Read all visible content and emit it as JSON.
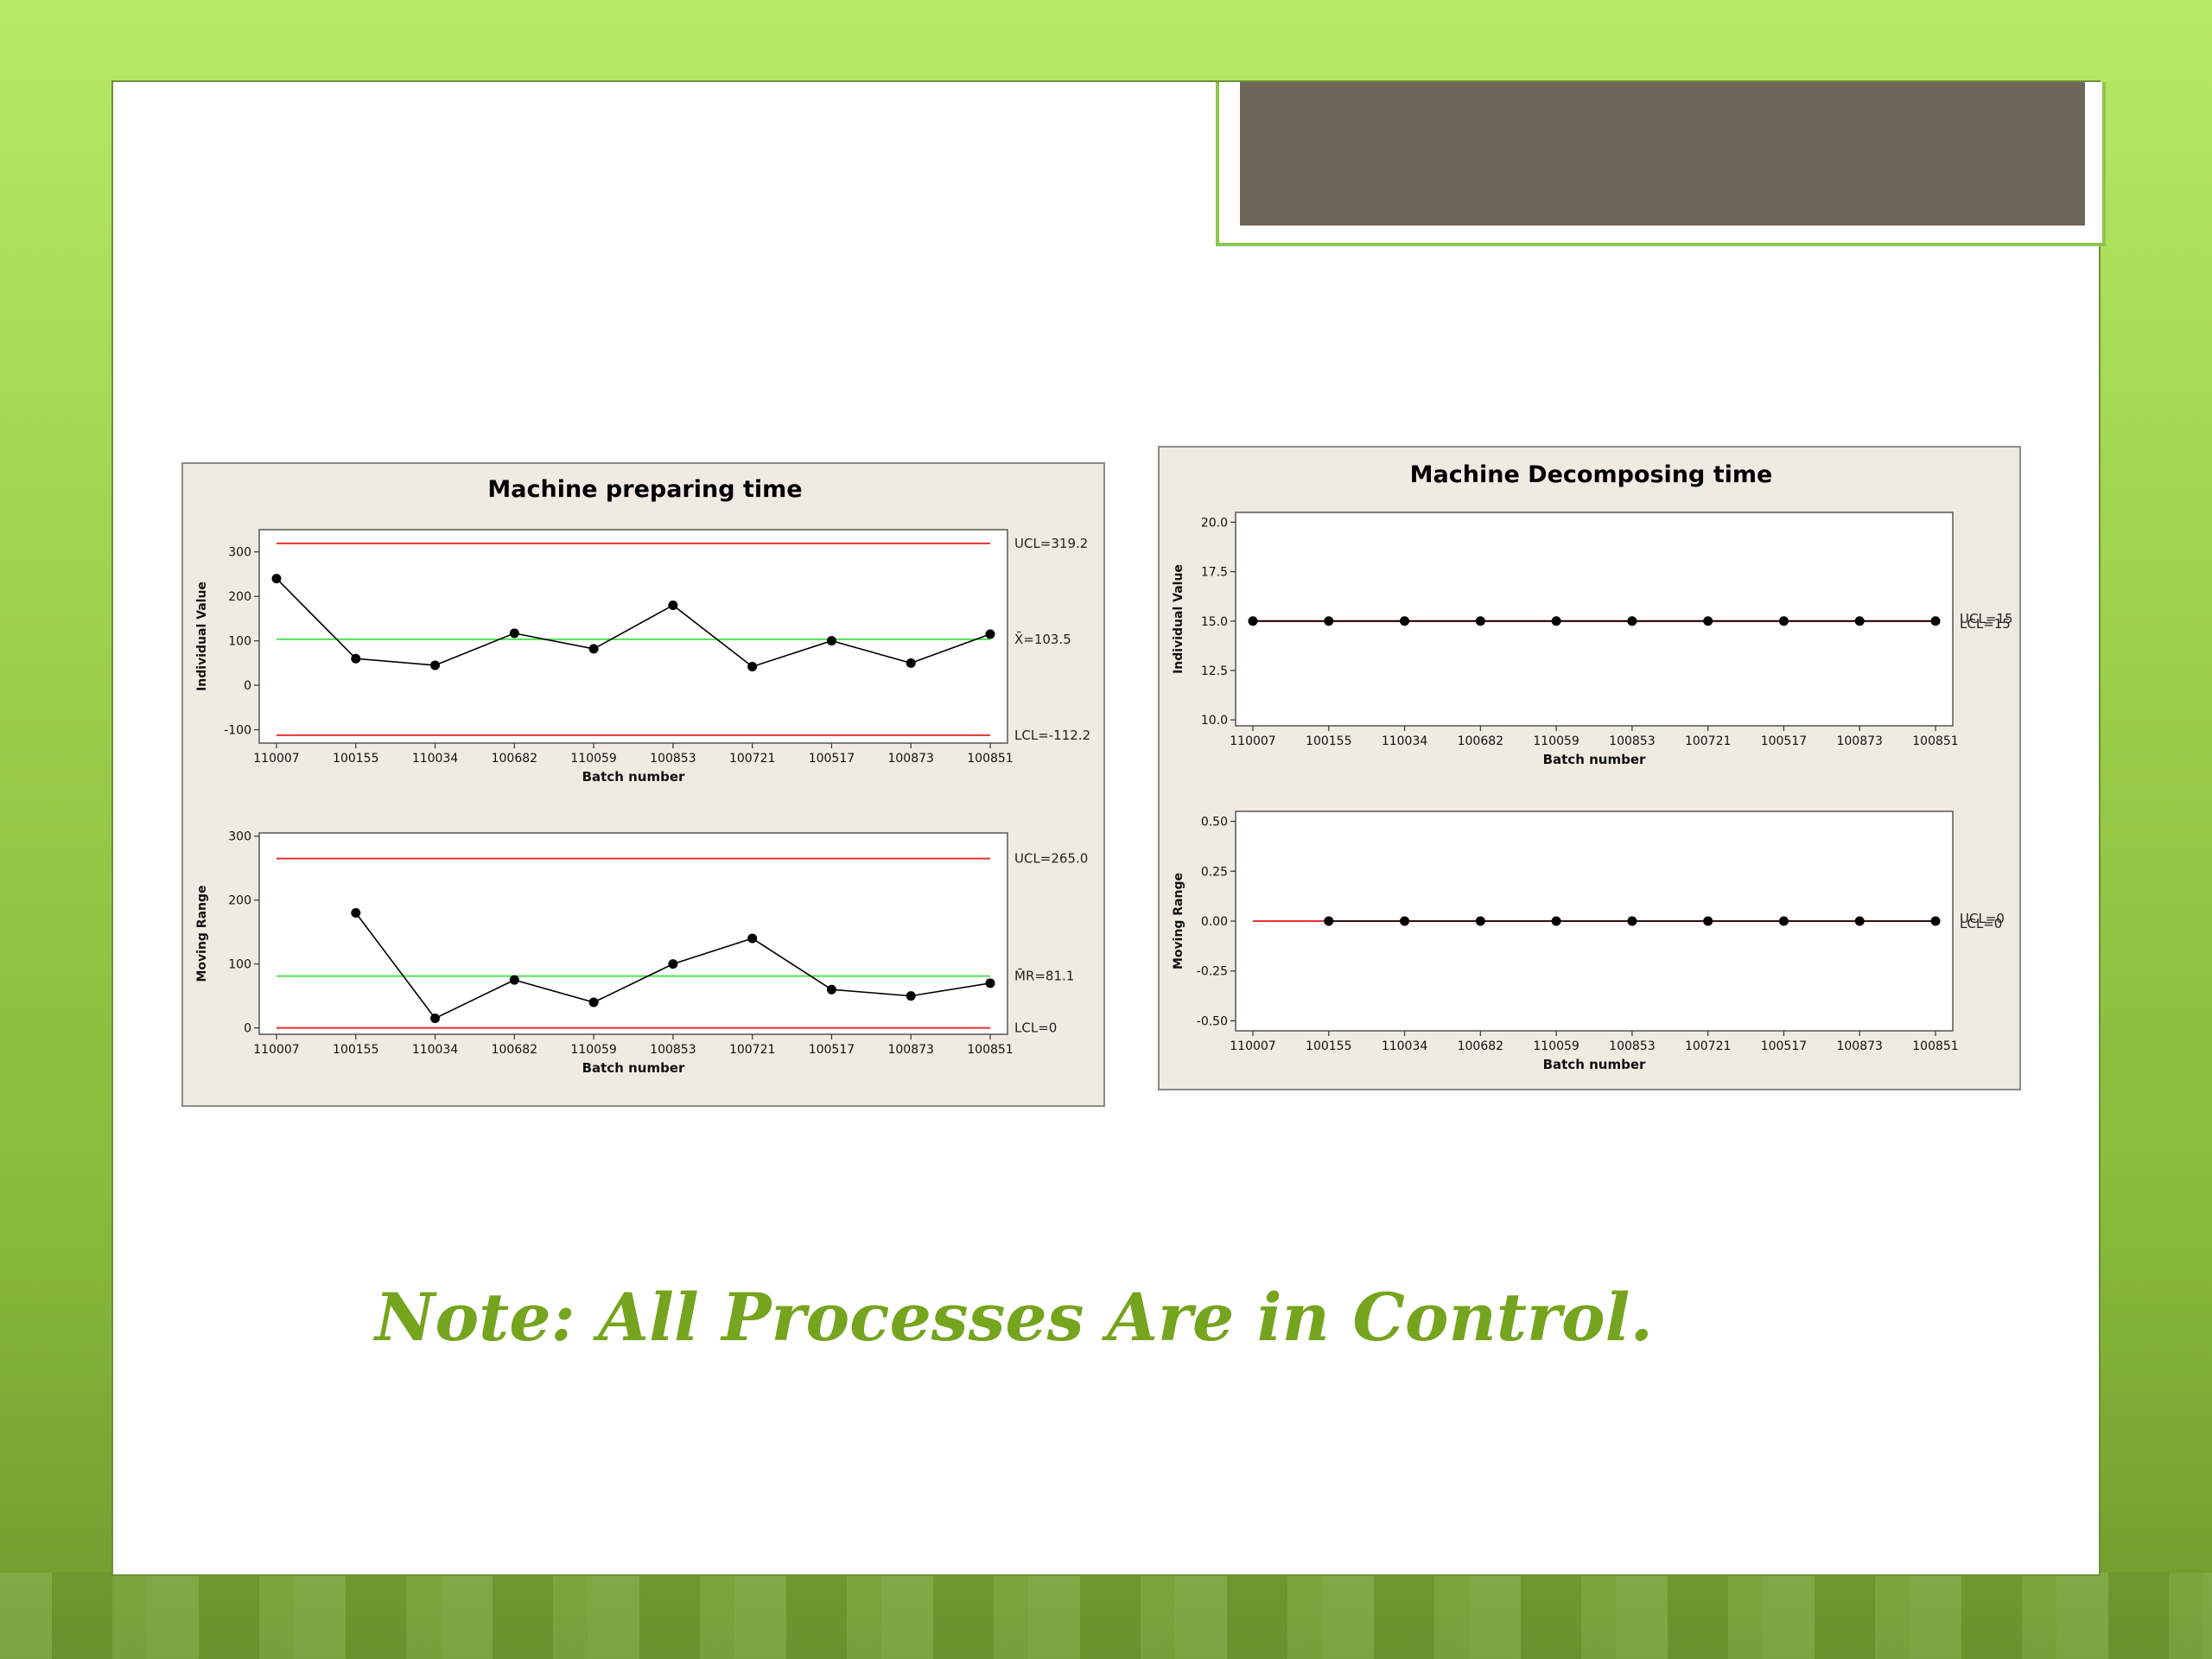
{
  "note": "Note: All Processes Are in Control.",
  "colors": {
    "limit": "#e53030",
    "center": "#55e055",
    "data": "#000000",
    "panel_bg": "#efebe2",
    "note": "#75a41e"
  },
  "chart_data": [
    {
      "type": "line",
      "title": "Machine preparing time",
      "xlabel": "Batch number",
      "categories": [
        "110007",
        "100155",
        "110034",
        "100682",
        "110059",
        "100853",
        "100721",
        "100517",
        "100873",
        "100851"
      ],
      "subcharts": [
        {
          "ylabel": "Individual Value",
          "values": [
            240,
            60,
            45,
            117,
            82,
            180,
            42,
            100,
            50,
            115
          ],
          "ylim": [
            -130,
            350
          ],
          "yticks": [
            -100,
            0,
            100,
            200,
            300
          ],
          "ytick_labels": [
            "-100",
            "0",
            "100",
            "200",
            "300"
          ],
          "limits": [
            {
              "value": 319.2,
              "kind": "ucl",
              "label": "UCL=319.2"
            },
            {
              "value": 103.5,
              "kind": "center",
              "label": "X̄=103.5"
            },
            {
              "value": -112.2,
              "kind": "lcl",
              "label": "LCL=-112.2"
            }
          ],
          "start_index": 0
        },
        {
          "ylabel": "Moving Range",
          "values": [
            null,
            180,
            15,
            75,
            40,
            100,
            140,
            60,
            50,
            70
          ],
          "ylim": [
            -10,
            305
          ],
          "yticks": [
            0,
            100,
            200,
            300
          ],
          "ytick_labels": [
            "0",
            "100",
            "200",
            "300"
          ],
          "limits": [
            {
              "value": 265.0,
              "kind": "ucl",
              "label": "UCL=265.0"
            },
            {
              "value": 81.1,
              "kind": "center",
              "label": "M̄R=81.1"
            },
            {
              "value": 0,
              "kind": "lcl",
              "label": "LCL=0"
            }
          ],
          "start_index": 1
        }
      ]
    },
    {
      "type": "line",
      "title": "Machine Decomposing time",
      "xlabel": "Batch number",
      "categories": [
        "110007",
        "100155",
        "110034",
        "100682",
        "110059",
        "100853",
        "100721",
        "100517",
        "100873",
        "100851"
      ],
      "subcharts": [
        {
          "ylabel": "Individual Value",
          "values": [
            15,
            15,
            15,
            15,
            15,
            15,
            15,
            15,
            15,
            15
          ],
          "ylim": [
            9.7,
            20.5
          ],
          "yticks": [
            10,
            12.5,
            15,
            17.5,
            20
          ],
          "ytick_labels": [
            "10.0",
            "12.5",
            "15.0",
            "17.5",
            "20.0"
          ],
          "limits": [
            {
              "value": 15,
              "kind": "ucl",
              "label": "UCL=15"
            },
            {
              "value": 15,
              "kind": "lcl",
              "label": "LCL=15"
            }
          ],
          "start_index": 0
        },
        {
          "ylabel": "Moving Range",
          "values": [
            null,
            0,
            0,
            0,
            0,
            0,
            0,
            0,
            0,
            0
          ],
          "ylim": [
            -0.55,
            0.55
          ],
          "yticks": [
            -0.5,
            -0.25,
            0,
            0.25,
            0.5
          ],
          "ytick_labels": [
            "-0.50",
            "-0.25",
            "0.00",
            "0.25",
            "0.50"
          ],
          "limits": [
            {
              "value": 0,
              "kind": "ucl",
              "label": "UCL=0"
            },
            {
              "value": 0,
              "kind": "lcl",
              "label": "LCL=0"
            }
          ],
          "start_index": 1
        }
      ]
    }
  ]
}
